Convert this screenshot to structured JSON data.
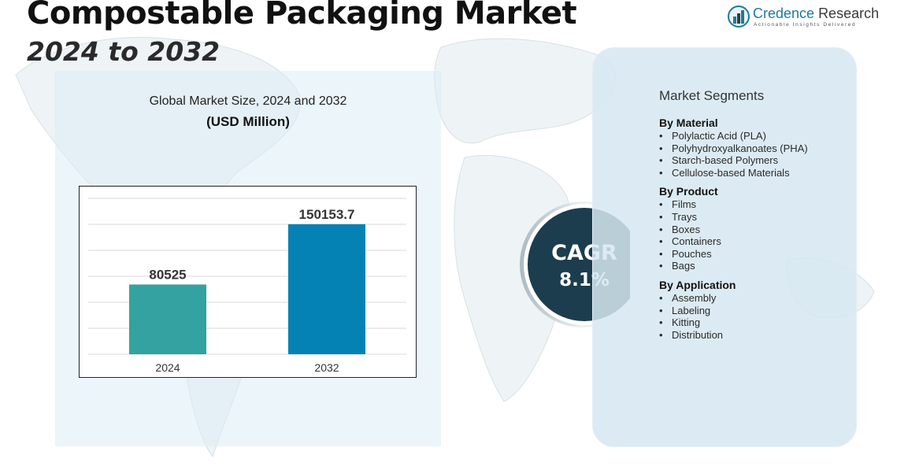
{
  "title": "Compostable Packaging Market",
  "subtitle": "2024 to 2032",
  "logo": {
    "name_part1": "Credence",
    "name_part2": "Research",
    "tagline": "Actionable Insights Delivered",
    "icon": "bar-chart-icon"
  },
  "chart_heading": "Global Market Size, 2024 and 2032",
  "chart_unit": "(USD Million)",
  "chart_data": {
    "type": "bar",
    "categories": [
      "2024",
      "2032"
    ],
    "values": [
      80525,
      150153.7
    ],
    "value_labels": [
      "80525",
      "150153.7"
    ],
    "title": "Global Market Size, 2024 and 2032",
    "ylabel": "(USD Million)",
    "xlabel": "",
    "ylim": [
      0,
      180000
    ],
    "grid": true,
    "colors": [
      "#33a2a0",
      "#0582b4"
    ]
  },
  "cagr": {
    "label": "CAGR",
    "value": "8.1%"
  },
  "segments": {
    "title": "Market Segments",
    "groups": [
      {
        "heading": "By Material",
        "items": [
          "Polylactic Acid (PLA)",
          "Polyhydroxyalkanoates (PHA)",
          "Starch-based Polymers",
          "Cellulose-based Materials"
        ]
      },
      {
        "heading": "By Product",
        "items": [
          "Films",
          "Trays",
          "Boxes",
          "Containers",
          "Pouches",
          "Bags"
        ]
      },
      {
        "heading": "By Application",
        "items": [
          "Assembly",
          "Labeling",
          "Kitting",
          "Distribution"
        ]
      }
    ]
  },
  "colors": {
    "cagr_circle": "#1c3d4e",
    "accent": "#1f7a9a"
  }
}
